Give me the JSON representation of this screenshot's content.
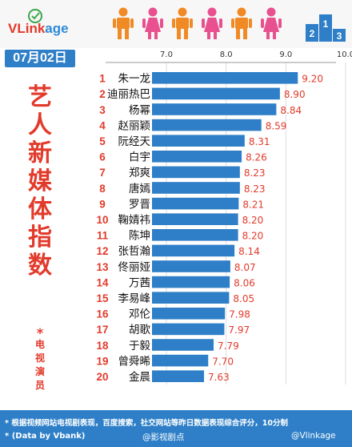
{
  "header": {
    "logo_text_red": "VLink",
    "logo_text_blue": "age",
    "date": "07月02日",
    "figure_colors": [
      "#f08a24",
      "#e8508f",
      "#f08a24",
      "#e8508f",
      "#f08a24",
      "#e8508f"
    ],
    "podium_color": "#2e7fc7"
  },
  "side": {
    "title_chars": [
      "艺",
      "人",
      "新",
      "媒",
      "体",
      "指",
      "数"
    ],
    "star": "*",
    "sub_chars": [
      "电",
      "视",
      "演",
      "员"
    ]
  },
  "footer": {
    "note": "* 根据视频网站电视剧表现，百度搜索，社交网站等昨日数据表现综合评分，10分制",
    "source": "* (Data by Vbank)",
    "watermark_1": "@影视剧点",
    "watermark_2": "@Vlinkage"
  },
  "colors": {
    "accent_red": "#e23a2b",
    "accent_blue": "#2e7fc7",
    "bar": "#2e7fc7",
    "value_text": "#e23a2b"
  },
  "chart_data": {
    "type": "bar",
    "orientation": "horizontal",
    "title": "艺人新媒体指数",
    "xlim": [
      7.0,
      10.0
    ],
    "xticks": [
      "7.0",
      "8.0",
      "9.0",
      "10.0"
    ],
    "ranks": [
      "1",
      "2",
      "3",
      "4",
      "5",
      "6",
      "7",
      "8",
      "9",
      "10",
      "11",
      "12",
      "13",
      "14",
      "15",
      "16",
      "17",
      "18",
      "19",
      "20"
    ],
    "categories": [
      "朱一龙",
      "迪丽热巴",
      "杨幂",
      "赵丽颖",
      "阮经天",
      "白宇",
      "郑爽",
      "唐嫣",
      "罗晋",
      "鞠婧祎",
      "陈坤",
      "张哲瀚",
      "佟丽娅",
      "万茜",
      "李易峰",
      "邓伦",
      "胡歌",
      "于毅",
      "曾舜晞",
      "金晨"
    ],
    "values": [
      9.2,
      8.9,
      8.84,
      8.59,
      8.31,
      8.26,
      8.23,
      8.23,
      8.21,
      8.2,
      8.2,
      8.14,
      8.07,
      8.06,
      8.05,
      7.98,
      7.97,
      7.79,
      7.7,
      7.63
    ],
    "value_labels": [
      "9.20",
      "8.90",
      "8.84",
      "8.59",
      "8.31",
      "8.26",
      "8.23",
      "8.23",
      "8.21",
      "8.20",
      "8.20",
      "8.14",
      "8.07",
      "8.06",
      "8.05",
      "7.98",
      "7.97",
      "7.79",
      "7.70",
      "7.63"
    ],
    "grid": true
  }
}
